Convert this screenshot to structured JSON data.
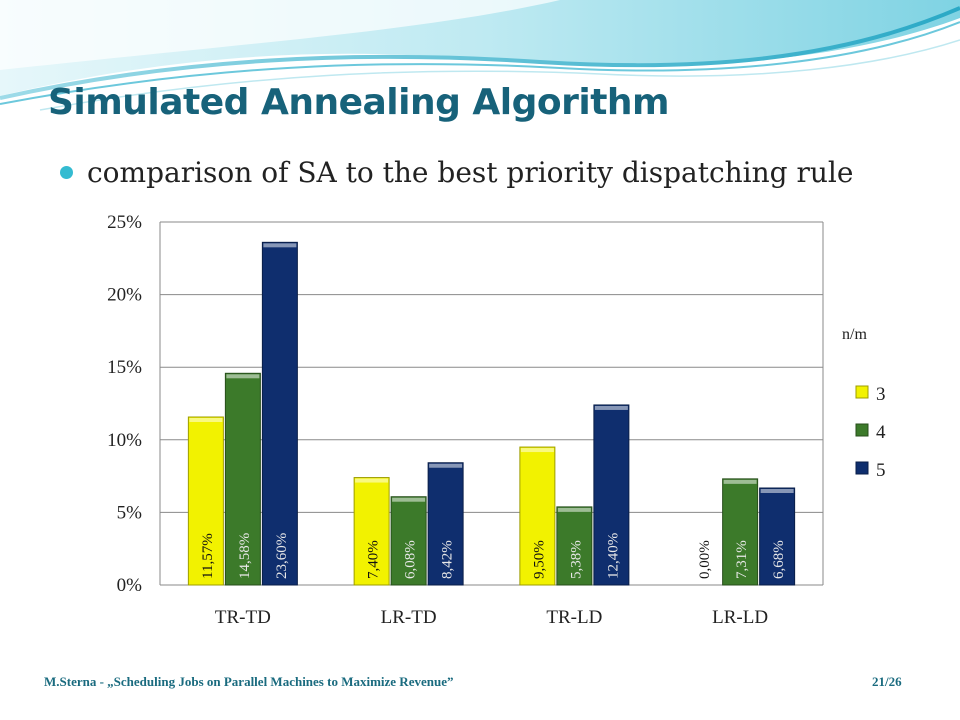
{
  "slide": {
    "title": "Simulated Annealing Algorithm",
    "bullet": "comparison of SA to the best priority dispatching rule",
    "footer_left": "M.Sterna - „Scheduling Jobs on Parallel Machines to Maximize Revenue”",
    "footer_right": "21/26",
    "title_color": "#17627a",
    "bullet_color": "#34bbd1"
  },
  "chart_data": {
    "type": "bar",
    "categories": [
      "TR-TD",
      "LR-TD",
      "TR-LD",
      "LR-LD"
    ],
    "legend_title": "n/m",
    "legend_position": "right",
    "grid": true,
    "ylim": [
      0,
      25
    ],
    "y_ticks": [
      "0%",
      "5%",
      "10%",
      "15%",
      "20%",
      "25%"
    ],
    "series": [
      {
        "name": "3",
        "color": "#f2f200",
        "values": [
          11.57,
          7.4,
          9.5,
          0.0
        ],
        "labels": [
          "11,57%",
          "7,40%",
          "9,50%",
          "0,00%"
        ]
      },
      {
        "name": "4",
        "color": "#3c7a2a",
        "values": [
          14.58,
          6.08,
          5.38,
          7.31
        ],
        "labels": [
          "14,58%",
          "6,08%",
          "5,38%",
          "7,31%"
        ]
      },
      {
        "name": "5",
        "color": "#0f2e6e",
        "values": [
          23.6,
          8.42,
          12.4,
          6.68
        ],
        "labels": [
          "23,60%",
          "8,42%",
          "12,40%",
          "6,68%"
        ]
      }
    ]
  }
}
